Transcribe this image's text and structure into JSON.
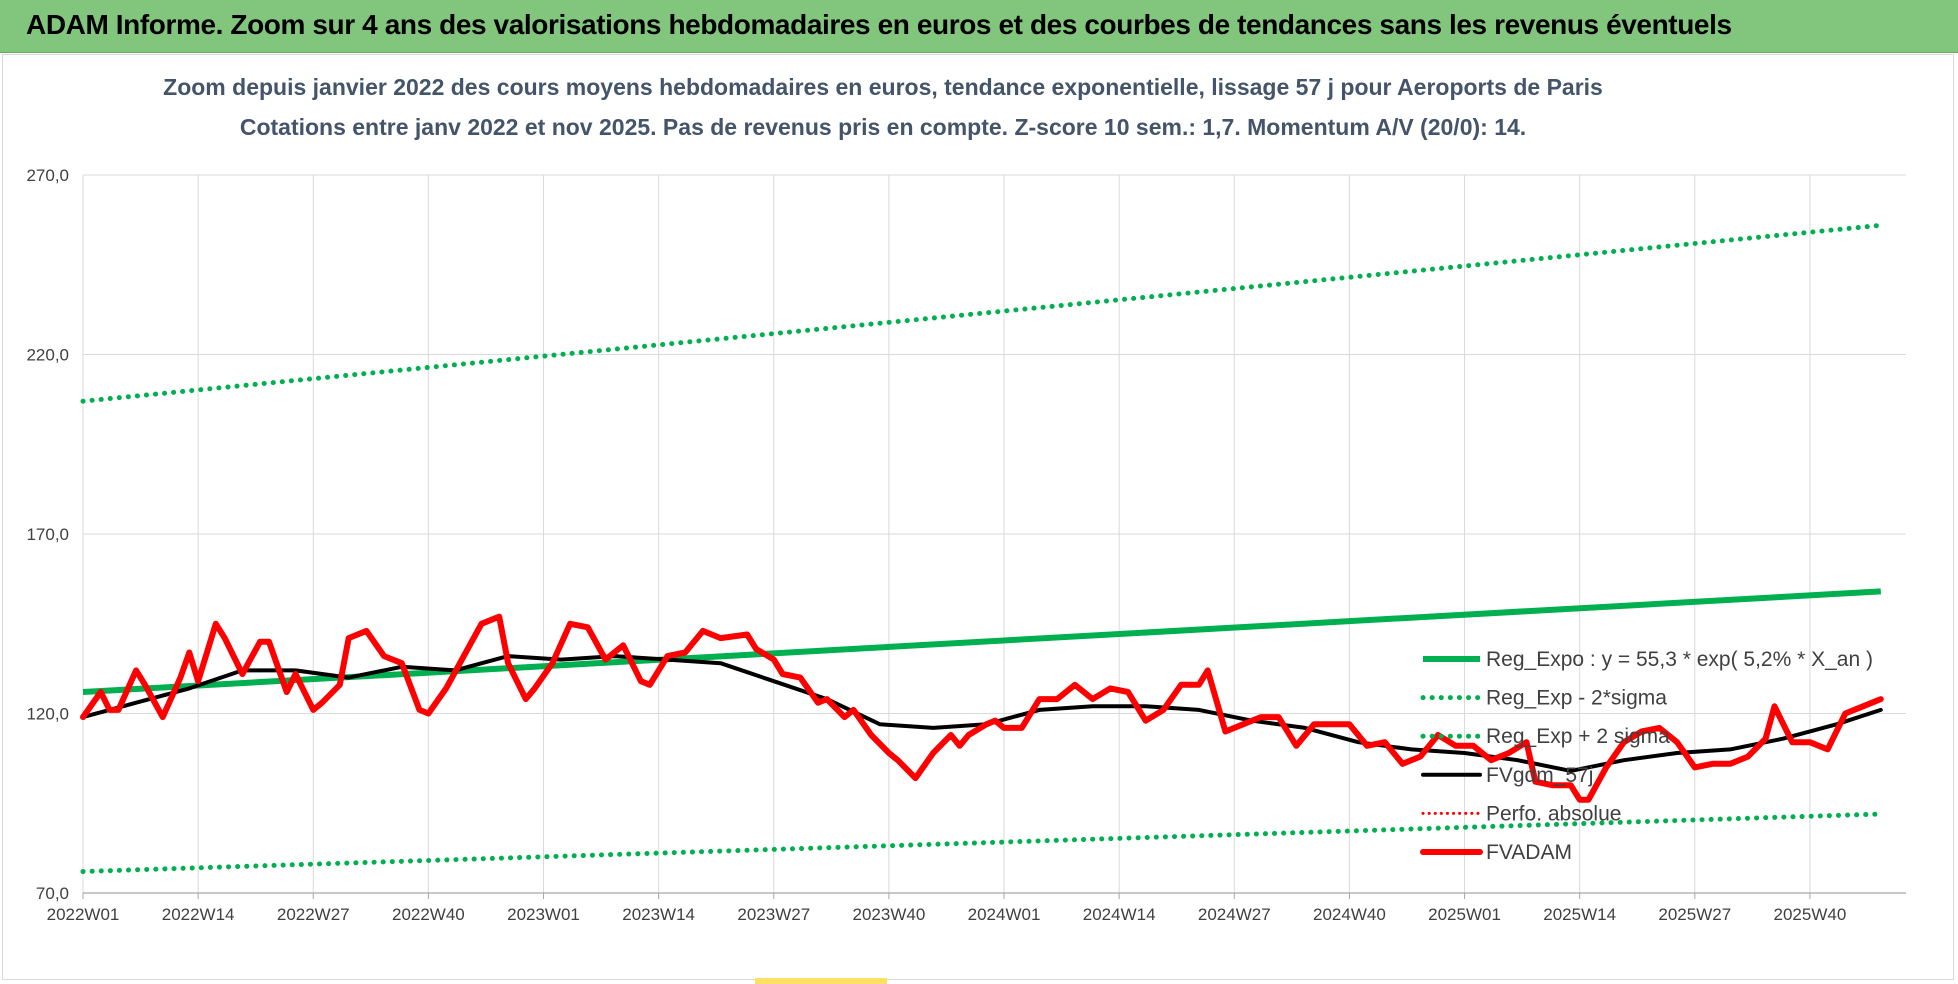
{
  "banner": {
    "title": "ADAM Informe. Zoom sur 4 ans des valorisations hebdomadaires en euros et des courbes de tendances sans les revenus éventuels"
  },
  "chart_data": {
    "type": "line",
    "title": "Zoom depuis janvier 2022 des cours moyens hebdomadaires en euros, tendance exponentielle, lissage 57 j pour Aeroports de Paris",
    "subtitle": "Cotations entre janv 2022 et nov 2025. Pas de revenus pris en compte. Z-score 10 sem.: 1,7. Momentum A/V (20/0): 14.",
    "xlabel": "",
    "ylabel": "",
    "ylim": [
      70,
      270
    ],
    "yticks": [
      "70,0",
      "120,0",
      "170,0",
      "220,0",
      "270,0"
    ],
    "x_tick_labels": [
      "2022W01",
      "2022W14",
      "2022W27",
      "2022W40",
      "2023W01",
      "2023W14",
      "2023W27",
      "2023W40",
      "2024W01",
      "2024W14",
      "2024W27",
      "2024W40",
      "2025W01",
      "2025W14",
      "2025W27",
      "2025W40"
    ],
    "x_tick_index": [
      0,
      13,
      26,
      39,
      52,
      65,
      78,
      91,
      104,
      117,
      130,
      143,
      156,
      169,
      182,
      195
    ],
    "weeks_count": 204,
    "grid": true,
    "legend_position": "right",
    "colors": {
      "green": "#00b050",
      "black": "#000000",
      "red": "#ff0000",
      "grid": "#d9d9d9"
    },
    "series": [
      {
        "name": "Reg_Expo : y = 55,3 * exp( 5,2% *  X_an )",
        "style": "solid-green-thick",
        "points": [
          [
            0,
            126
          ],
          [
            203,
            154
          ]
        ]
      },
      {
        "name": "Reg_Exp - 2*sigma",
        "style": "dotted-green",
        "points": [
          [
            0,
            76
          ],
          [
            203,
            92
          ]
        ]
      },
      {
        "name": "Reg_Exp + 2 sigma",
        "style": "dotted-green",
        "points": [
          [
            0,
            207
          ],
          [
            203,
            256
          ]
        ]
      },
      {
        "name": "FVgdm_57j",
        "style": "solid-black",
        "points": [
          [
            0,
            119
          ],
          [
            6,
            123
          ],
          [
            12,
            127
          ],
          [
            18,
            132
          ],
          [
            24,
            132
          ],
          [
            30,
            130
          ],
          [
            36,
            133
          ],
          [
            42,
            132
          ],
          [
            48,
            136
          ],
          [
            54,
            135
          ],
          [
            60,
            136
          ],
          [
            66,
            135
          ],
          [
            72,
            134
          ],
          [
            78,
            129
          ],
          [
            84,
            124
          ],
          [
            90,
            117
          ],
          [
            96,
            116
          ],
          [
            102,
            117
          ],
          [
            108,
            121
          ],
          [
            114,
            122
          ],
          [
            120,
            122
          ],
          [
            126,
            121
          ],
          [
            132,
            118
          ],
          [
            138,
            116
          ],
          [
            144,
            112
          ],
          [
            150,
            110
          ],
          [
            156,
            109
          ],
          [
            162,
            107
          ],
          [
            168,
            104
          ],
          [
            174,
            107
          ],
          [
            180,
            109
          ],
          [
            186,
            110
          ],
          [
            192,
            113
          ],
          [
            198,
            117
          ],
          [
            203,
            121
          ]
        ]
      },
      {
        "name": "Perfo. absolue",
        "style": "dotted-red",
        "points": []
      },
      {
        "name": "FVADAM",
        "style": "solid-red-thick",
        "points": [
          [
            0,
            119
          ],
          [
            2,
            126
          ],
          [
            3,
            121
          ],
          [
            4,
            121
          ],
          [
            6,
            132
          ],
          [
            7,
            128
          ],
          [
            9,
            119
          ],
          [
            11,
            130
          ],
          [
            12,
            137
          ],
          [
            13,
            129
          ],
          [
            15,
            145
          ],
          [
            16,
            141
          ],
          [
            18,
            131
          ],
          [
            20,
            140
          ],
          [
            21,
            140
          ],
          [
            23,
            126
          ],
          [
            24,
            131
          ],
          [
            26,
            121
          ],
          [
            27,
            123
          ],
          [
            29,
            128
          ],
          [
            30,
            141
          ],
          [
            32,
            143
          ],
          [
            34,
            136
          ],
          [
            36,
            134
          ],
          [
            38,
            121
          ],
          [
            39,
            120
          ],
          [
            41,
            127
          ],
          [
            43,
            136
          ],
          [
            45,
            145
          ],
          [
            47,
            147
          ],
          [
            48,
            134
          ],
          [
            50,
            124
          ],
          [
            51,
            127
          ],
          [
            53,
            134
          ],
          [
            55,
            145
          ],
          [
            57,
            144
          ],
          [
            59,
            135
          ],
          [
            61,
            139
          ],
          [
            63,
            129
          ],
          [
            64,
            128
          ],
          [
            66,
            136
          ],
          [
            68,
            137
          ],
          [
            70,
            143
          ],
          [
            72,
            141
          ],
          [
            75,
            142
          ],
          [
            76,
            138
          ],
          [
            78,
            135
          ],
          [
            79,
            131
          ],
          [
            81,
            130
          ],
          [
            83,
            123
          ],
          [
            84,
            124
          ],
          [
            86,
            119
          ],
          [
            87,
            121
          ],
          [
            89,
            114
          ],
          [
            91,
            109
          ],
          [
            92,
            107
          ],
          [
            94,
            102
          ],
          [
            96,
            109
          ],
          [
            98,
            114
          ],
          [
            99,
            111
          ],
          [
            100,
            114
          ],
          [
            102,
            117
          ],
          [
            103,
            118
          ],
          [
            104,
            116
          ],
          [
            106,
            116
          ],
          [
            108,
            124
          ],
          [
            110,
            124
          ],
          [
            112,
            128
          ],
          [
            114,
            124
          ],
          [
            116,
            127
          ],
          [
            118,
            126
          ],
          [
            120,
            118
          ],
          [
            122,
            121
          ],
          [
            124,
            128
          ],
          [
            126,
            128
          ],
          [
            127,
            132
          ],
          [
            129,
            115
          ],
          [
            131,
            117
          ],
          [
            133,
            119
          ],
          [
            135,
            119
          ],
          [
            137,
            111
          ],
          [
            139,
            117
          ],
          [
            141,
            117
          ],
          [
            143,
            117
          ],
          [
            145,
            111
          ],
          [
            147,
            112
          ],
          [
            149,
            106
          ],
          [
            151,
            108
          ],
          [
            153,
            114
          ],
          [
            155,
            111
          ],
          [
            157,
            111
          ],
          [
            159,
            107
          ],
          [
            161,
            109
          ],
          [
            163,
            112
          ],
          [
            164,
            101
          ],
          [
            166,
            100
          ],
          [
            168,
            100
          ],
          [
            169,
            96
          ],
          [
            170,
            96
          ],
          [
            172,
            105
          ],
          [
            174,
            112
          ],
          [
            176,
            115
          ],
          [
            178,
            116
          ],
          [
            180,
            112
          ],
          [
            182,
            105
          ],
          [
            184,
            106
          ],
          [
            186,
            106
          ],
          [
            188,
            108
          ],
          [
            190,
            113
          ],
          [
            191,
            122
          ],
          [
            193,
            112
          ],
          [
            195,
            112
          ],
          [
            197,
            110
          ],
          [
            199,
            120
          ],
          [
            201,
            122
          ],
          [
            203,
            124
          ]
        ]
      }
    ]
  }
}
